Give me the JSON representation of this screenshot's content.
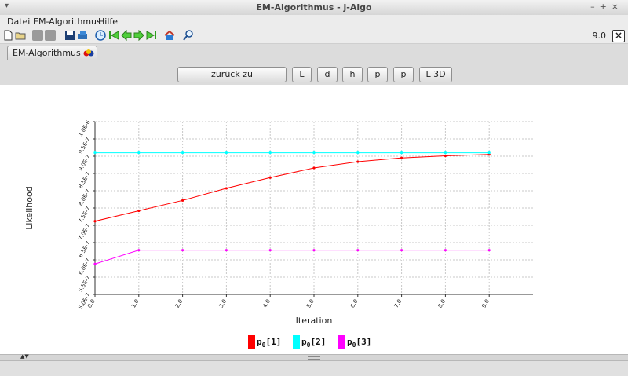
{
  "window": {
    "title": "EM-Algorithmus  -  j-Algo",
    "controls": [
      "–",
      "+",
      "×"
    ]
  },
  "menu": {
    "items": [
      "Datei",
      "EM-Algorithmus",
      "Hilfe"
    ]
  },
  "toolbar": {
    "icons": [
      "new-file-icon",
      "open-folder-icon",
      "disabled-icon-1",
      "disabled-icon-2",
      "save-icon",
      "save-as-icon",
      "clock-icon",
      "first-icon",
      "back-icon",
      "forward-icon",
      "last-icon",
      "home-icon",
      "zoom-icon"
    ],
    "zoom_value": "9.0",
    "close_label": "×"
  },
  "tab": {
    "label": "EM-Algorithmus"
  },
  "buttons": {
    "reset_zoom": "zurück zu Standardzoom",
    "L": "L",
    "d": "d",
    "h": "h",
    "p1": "p",
    "p2": "p",
    "L3D": "L 3D"
  },
  "colors": {
    "series1": "#ff0000",
    "series2": "#00ffff",
    "series3": "#ff00ff"
  },
  "chart_data": {
    "type": "line",
    "xlabel": "Iteration",
    "ylabel": "Likelihood",
    "x": [
      0,
      1,
      2,
      3,
      4,
      5,
      6,
      7,
      8,
      9
    ],
    "xticks": [
      "0.0",
      "1.0",
      "2.0",
      "3.0",
      "4.0",
      "5.0",
      "6.0",
      "7.0",
      "8.0",
      "9.0"
    ],
    "yticks": [
      "5.0E-7",
      "5.5E-7",
      "6.0E-7",
      "6.5E-7",
      "7.0E-7",
      "7.5E-7",
      "8.0E-7",
      "8.5E-7",
      "9.0E-7",
      "9.5E-7",
      "1.0E-6"
    ],
    "ylim": [
      5e-07,
      1e-06
    ],
    "xlim": [
      0,
      10
    ],
    "grid": true,
    "legend_position": "bottom-center",
    "series": [
      {
        "name": "p0[1]",
        "legend_base": "p",
        "legend_sub": "0",
        "legend_index": "[1]",
        "color": "#ff0000",
        "values": [
          7.12e-07,
          7.42e-07,
          7.72e-07,
          8.07e-07,
          8.38e-07,
          8.66e-07,
          8.84e-07,
          8.95e-07,
          9.01e-07,
          9.05e-07
        ]
      },
      {
        "name": "p0[2]",
        "legend_base": "p",
        "legend_sub": "0",
        "legend_index": "[2]",
        "color": "#00ffff",
        "values": [
          9.1e-07,
          9.1e-07,
          9.1e-07,
          9.1e-07,
          9.1e-07,
          9.1e-07,
          9.1e-07,
          9.1e-07,
          9.1e-07,
          9.1e-07
        ]
      },
      {
        "name": "p0[3]",
        "legend_base": "p",
        "legend_sub": "0",
        "legend_index": "[3]",
        "color": "#ff00ff",
        "values": [
          5.88e-07,
          6.28e-07,
          6.28e-07,
          6.28e-07,
          6.28e-07,
          6.28e-07,
          6.28e-07,
          6.28e-07,
          6.28e-07,
          6.28e-07
        ]
      }
    ]
  }
}
